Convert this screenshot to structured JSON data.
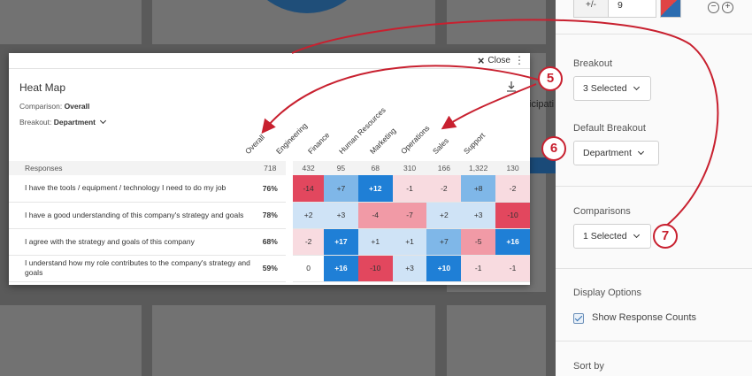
{
  "modal": {
    "close_label": "Close",
    "title": "Heat Map",
    "comparison_label": "Comparison:",
    "comparison_value": "Overall",
    "breakout_label": "Breakout:",
    "breakout_value": "Department"
  },
  "columns": [
    "Overall",
    "Engineering",
    "Finance",
    "Human Resources",
    "Marketing",
    "Operations",
    "Sales",
    "Support"
  ],
  "responses": {
    "label": "Responses",
    "values": [
      "718",
      "432",
      "95",
      "68",
      "310",
      "166",
      "1,322",
      "130"
    ]
  },
  "rows": [
    {
      "question": "I have the tools / equipment / technology I need to do my job",
      "overall": "76%",
      "cells": [
        "-14",
        "+7",
        "+12",
        "-1",
        "-2",
        "+8",
        "-2"
      ]
    },
    {
      "question": "I have a good understanding of this company's strategy and goals",
      "overall": "78%",
      "cells": [
        "+2",
        "+3",
        "-4",
        "-7",
        "+2",
        "+3",
        "-10"
      ]
    },
    {
      "question": "I agree with the strategy and goals of this company",
      "overall": "68%",
      "cells": [
        "-2",
        "+17",
        "+1",
        "+1",
        "+7",
        "-5",
        "+16"
      ]
    },
    {
      "question": "I understand how my role contributes to the company's strategy and goals",
      "overall": "59%",
      "cells": [
        "0",
        "+16",
        "-10",
        "+3",
        "+10",
        "-1",
        "-1"
      ]
    }
  ],
  "background": {
    "partial_text": "icipati"
  },
  "panel": {
    "plusminus_label": "+/-",
    "threshold_value": "9",
    "minus_symbol": "−",
    "plus_symbol": "+",
    "breakout_heading": "Breakout",
    "breakout_select": "3 Selected",
    "default_breakout_heading": "Default Breakout",
    "default_breakout_select": "Department",
    "comparisons_heading": "Comparisons",
    "comparisons_select": "1 Selected",
    "display_options_heading": "Display Options",
    "show_response_counts_label": "Show Response Counts",
    "show_response_counts_checked": true,
    "sort_by_heading": "Sort by"
  },
  "annotations": [
    "5",
    "6",
    "7"
  ],
  "colors": {
    "annotation_red": "#c8202f",
    "neg_strong": "#e2475e",
    "neg_medium": "#f19aa6",
    "neg_light": "#f8dbe0",
    "pos_strong": "#1f7fd6",
    "pos_medium": "#7fb7e8",
    "pos_light": "#cfe3f6"
  }
}
